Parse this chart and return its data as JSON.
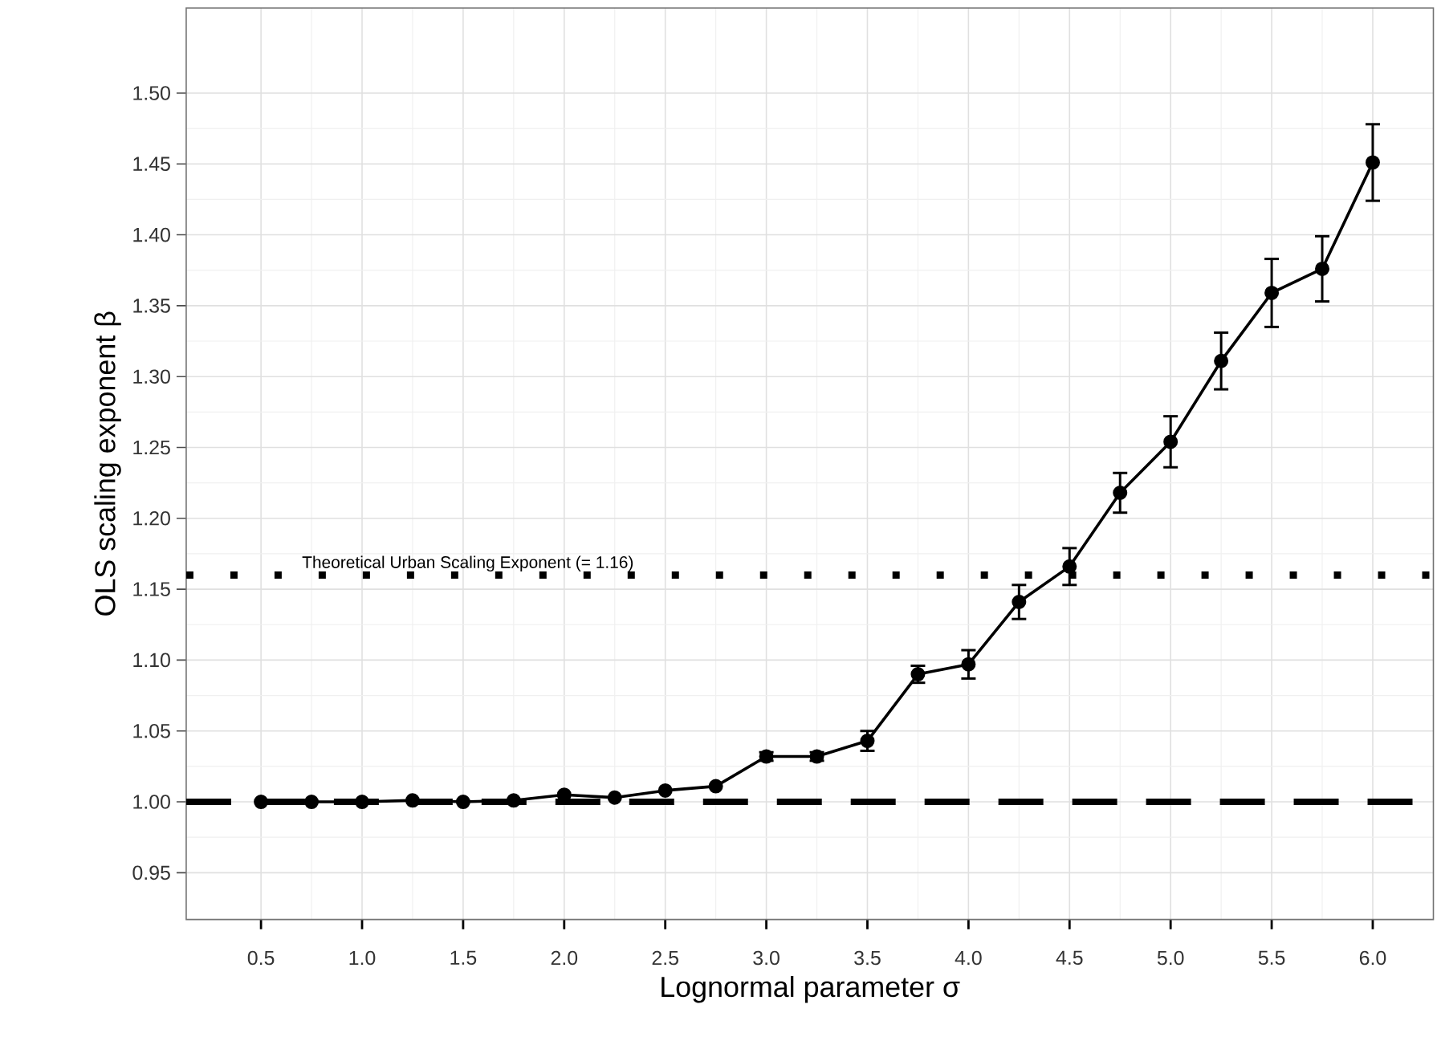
{
  "chart_data": {
    "type": "line",
    "xlabel": "Lognormal parameter  σ",
    "ylabel": "OLS scaling exponent  β",
    "x": [
      0.5,
      0.75,
      1.0,
      1.25,
      1.5,
      1.75,
      2.0,
      2.25,
      2.5,
      2.75,
      3.0,
      3.25,
      3.5,
      3.75,
      4.0,
      4.25,
      4.5,
      4.75,
      5.0,
      5.25,
      5.5,
      5.75,
      6.0
    ],
    "series": [
      {
        "color": "#000000",
        "values": [
          1.0,
          1.0,
          1.0,
          1.001,
          1.0,
          1.001,
          1.005,
          1.003,
          1.008,
          1.011,
          1.032,
          1.032,
          1.043,
          1.09,
          1.097,
          1.141,
          1.166,
          1.218,
          1.254,
          1.311,
          1.359,
          1.376,
          1.451
        ],
        "errors": [
          null,
          null,
          null,
          null,
          null,
          null,
          null,
          null,
          null,
          null,
          0.003,
          0.003,
          0.007,
          0.006,
          0.01,
          0.012,
          0.013,
          0.014,
          0.018,
          0.02,
          0.024,
          0.023,
          0.027
        ]
      }
    ],
    "xlim": [
      0.13,
      6.3
    ],
    "ylim": [
      0.917,
      1.56
    ],
    "xticks": [
      {
        "value": 0.5,
        "label": "0.5"
      },
      {
        "value": 1.0,
        "label": "1.0"
      },
      {
        "value": 1.5,
        "label": "1.5"
      },
      {
        "value": 2.0,
        "label": "2.0"
      },
      {
        "value": 2.5,
        "label": "2.5"
      },
      {
        "value": 3.0,
        "label": "3.0"
      },
      {
        "value": 3.5,
        "label": "3.5"
      },
      {
        "value": 4.0,
        "label": "4.0"
      },
      {
        "value": 4.5,
        "label": "4.5"
      },
      {
        "value": 5.0,
        "label": "5.0"
      },
      {
        "value": 5.5,
        "label": "5.5"
      },
      {
        "value": 6.0,
        "label": "6.0"
      }
    ],
    "yticks": [
      0.95,
      {
        "value": 1.0,
        "label": "1.00"
      },
      1.05,
      {
        "value": 1.1,
        "label": "1.10"
      },
      1.15,
      {
        "value": 1.2,
        "label": "1.20"
      },
      1.25,
      {
        "value": 1.3,
        "label": "1.30"
      },
      1.35,
      {
        "value": 1.4,
        "label": "1.40"
      },
      1.45,
      {
        "value": 1.5,
        "label": "1.50"
      }
    ],
    "ref_lines": [
      {
        "axis": "y",
        "value": 1.0,
        "line_style": "dashed",
        "color": "#000000"
      },
      {
        "axis": "y",
        "value": 1.16,
        "line_style": "dotted",
        "color": "#000000",
        "label": "Theoretical Urban Scaling Exponent (= 1.16)"
      }
    ],
    "grid": true,
    "marker": "circle",
    "line_style": "solid"
  }
}
